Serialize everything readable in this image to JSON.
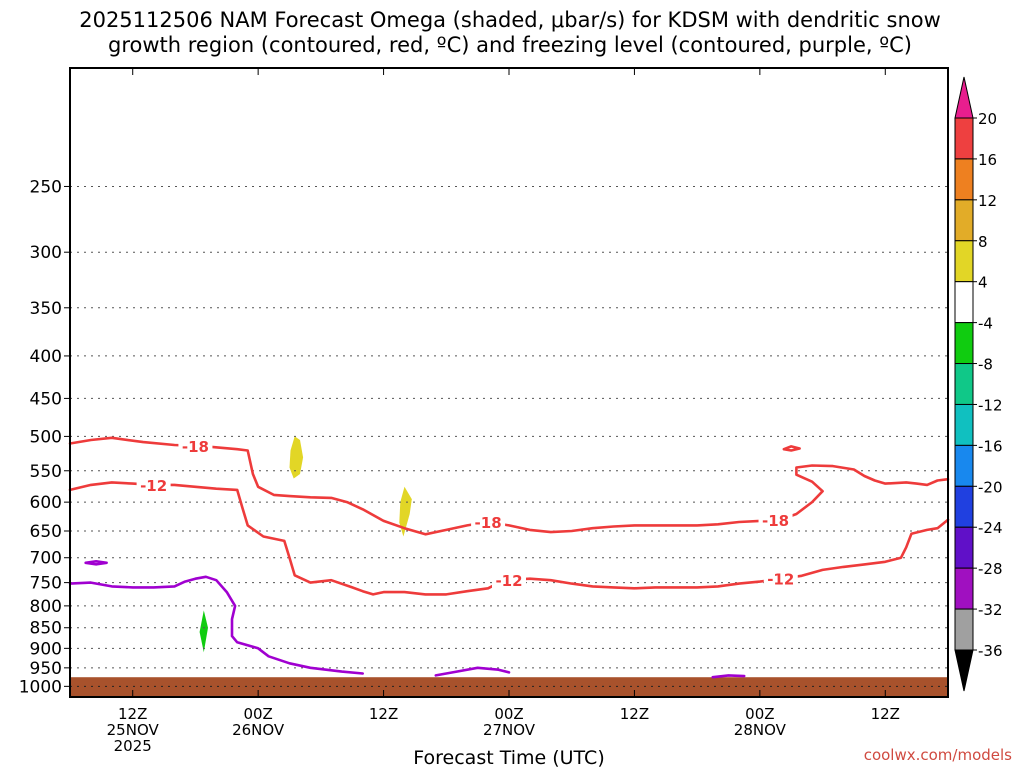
{
  "title_line1": "2025112506 NAM Forecast Omega (shaded, μbar/s) for KDSM with dendritic snow",
  "title_line2": "growth region (contoured, red, ºC) and freezing level (contoured, purple, ºC)",
  "xlabel": "Forecast Time (UTC)",
  "credit": "coolwx.com/models",
  "chart_data": {
    "type": "time-height-contour",
    "title": "2025112506 NAM Forecast Omega (shaded, μbar/s) for KDSM with dendritic snow growth region (contoured, red, ºC) and freezing level (contoured, purple, ºC)",
    "xlabel": "Forecast Time (UTC)",
    "ylabel": "",
    "x_unit": "hours from 2025-11-25 06Z",
    "x_range": [
      0,
      84
    ],
    "y_scale": "log-pressure",
    "y_range_hpa": [
      1030,
      180
    ],
    "pressure_levels": [
      250,
      300,
      350,
      400,
      450,
      500,
      550,
      600,
      650,
      700,
      750,
      800,
      850,
      900,
      950,
      1000
    ],
    "grid": true,
    "x_ticks": [
      {
        "hour": 6,
        "lines": [
          "12Z",
          "25NOV",
          "2025"
        ]
      },
      {
        "hour": 18,
        "lines": [
          "00Z",
          "26NOV"
        ]
      },
      {
        "hour": 30,
        "lines": [
          "12Z"
        ]
      },
      {
        "hour": 42,
        "lines": [
          "00Z",
          "27NOV"
        ]
      },
      {
        "hour": 54,
        "lines": [
          "12Z"
        ]
      },
      {
        "hour": 66,
        "lines": [
          "00Z",
          "28NOV"
        ]
      },
      {
        "hour": 78,
        "lines": [
          "12Z"
        ]
      }
    ],
    "colorbar": {
      "labels": [
        "20",
        "16",
        "12",
        "8",
        "4",
        "-4",
        "-8",
        "-12",
        "-16",
        "-20",
        "-24",
        "-28",
        "-32",
        "-36"
      ],
      "colors": [
        "#e81e8e",
        "#ee4040",
        "#ee8020",
        "#e2ac28",
        "#e2d626",
        "#ffffff",
        "#10cc10",
        "#10c888",
        "#10c0c0",
        "#1888ee",
        "#2040e0",
        "#6010c8",
        "#a010c0",
        "#a0a0a0",
        "#000000"
      ]
    },
    "contours": [
      {
        "name": "-18",
        "color": "#ee3b3b",
        "label_hours": [
          12,
          40,
          67.5
        ],
        "points": [
          [
            0,
            510
          ],
          [
            2,
            505
          ],
          [
            4,
            502
          ],
          [
            7,
            508
          ],
          [
            10,
            512
          ],
          [
            13,
            514
          ],
          [
            16,
            518
          ],
          [
            17,
            520
          ],
          [
            17.5,
            555
          ],
          [
            18,
            575
          ],
          [
            19.5,
            588
          ],
          [
            21,
            590
          ],
          [
            23,
            592
          ],
          [
            25,
            593
          ],
          [
            26.5,
            600
          ],
          [
            28,
            612
          ],
          [
            30,
            632
          ],
          [
            32,
            645
          ],
          [
            34,
            656
          ],
          [
            36,
            648
          ],
          [
            38,
            640
          ],
          [
            40,
            634
          ],
          [
            42,
            640
          ],
          [
            44,
            648
          ],
          [
            46,
            652
          ],
          [
            48,
            650
          ],
          [
            50,
            645
          ],
          [
            52,
            642
          ],
          [
            54,
            640
          ],
          [
            56,
            640
          ],
          [
            58,
            640
          ],
          [
            60,
            640
          ],
          [
            62,
            638
          ],
          [
            64,
            634
          ],
          [
            66,
            632
          ],
          [
            68,
            630
          ],
          [
            69.5,
            620
          ],
          [
            71,
            600
          ],
          [
            72,
            582
          ],
          [
            71,
            567
          ],
          [
            69.5,
            556
          ],
          [
            69.5,
            545
          ],
          [
            71,
            542
          ],
          [
            73,
            543
          ],
          [
            75,
            548
          ],
          [
            76,
            558
          ],
          [
            77,
            565
          ],
          [
            78,
            570
          ],
          [
            80,
            568
          ],
          [
            81,
            570
          ],
          [
            82,
            572
          ],
          [
            83,
            565
          ],
          [
            84,
            563
          ]
        ]
      },
      {
        "name": "-12",
        "color": "#ee3b3b",
        "label_hours": [
          8,
          42,
          68
        ],
        "points": [
          [
            0,
            580
          ],
          [
            2,
            572
          ],
          [
            4,
            568
          ],
          [
            6,
            570
          ],
          [
            8,
            572
          ],
          [
            10,
            572
          ],
          [
            12,
            575
          ],
          [
            14,
            578
          ],
          [
            16,
            580
          ],
          [
            16.5,
            610
          ],
          [
            17,
            640
          ],
          [
            18.5,
            660
          ],
          [
            20.5,
            668
          ],
          [
            21,
            700
          ],
          [
            21.5,
            735
          ],
          [
            23,
            750
          ],
          [
            25,
            745
          ],
          [
            27,
            760
          ],
          [
            28,
            768
          ],
          [
            29,
            775
          ],
          [
            30,
            770
          ],
          [
            32,
            770
          ],
          [
            34,
            775
          ],
          [
            36,
            775
          ],
          [
            38,
            768
          ],
          [
            40,
            762
          ],
          [
            41.5,
            745
          ],
          [
            44,
            742
          ],
          [
            46,
            745
          ],
          [
            48,
            752
          ],
          [
            50,
            758
          ],
          [
            52,
            760
          ],
          [
            54,
            762
          ],
          [
            56,
            760
          ],
          [
            58,
            760
          ],
          [
            60,
            760
          ],
          [
            62,
            758
          ],
          [
            64,
            752
          ],
          [
            66,
            748
          ],
          [
            68,
            742
          ],
          [
            70,
            736
          ],
          [
            72,
            724
          ],
          [
            74,
            718
          ],
          [
            76,
            713
          ],
          [
            78,
            708
          ],
          [
            79.5,
            700
          ],
          [
            80,
            680
          ],
          [
            80.5,
            655
          ],
          [
            82,
            648
          ],
          [
            83,
            645
          ],
          [
            84,
            630
          ]
        ]
      },
      {
        "name": "-18 small loop",
        "color": "#ee3b3b",
        "label_hours": [],
        "points": [
          [
            68.3,
            518
          ],
          [
            69,
            514
          ],
          [
            69.8,
            517
          ],
          [
            69,
            520
          ],
          [
            68.3,
            518
          ]
        ]
      },
      {
        "name": "0 freezing level",
        "color": "#a000d0",
        "label_hours": [],
        "points": [
          [
            0,
            752
          ],
          [
            2,
            750
          ],
          [
            4,
            758
          ],
          [
            6,
            760
          ],
          [
            8,
            760
          ],
          [
            10,
            758
          ],
          [
            11,
            748
          ],
          [
            12,
            742
          ],
          [
            13,
            738
          ],
          [
            14,
            745
          ],
          [
            15,
            770
          ],
          [
            15.8,
            800
          ],
          [
            15.5,
            830
          ],
          [
            15.5,
            870
          ],
          [
            16,
            885
          ],
          [
            18,
            900
          ],
          [
            19,
            920
          ],
          [
            21,
            938
          ],
          [
            23,
            950
          ],
          [
            26,
            960
          ],
          [
            28,
            965
          ]
        ]
      },
      {
        "name": "0 freezing level small loop",
        "color": "#a000d0",
        "label_hours": [],
        "points": [
          [
            1.5,
            710
          ],
          [
            2.5,
            707
          ],
          [
            3.5,
            710
          ],
          [
            2.5,
            713
          ],
          [
            1.5,
            710
          ]
        ]
      },
      {
        "name": "0 freezing level near surface",
        "color": "#a000d0",
        "label_hours": [],
        "points": [
          [
            35,
            970
          ],
          [
            37,
            960
          ],
          [
            39,
            950
          ],
          [
            41,
            955
          ],
          [
            42,
            962
          ]
        ]
      },
      {
        "name": "0 freezing level near surface 2",
        "color": "#a000d0",
        "label_hours": [],
        "points": [
          [
            61.5,
            975
          ],
          [
            63,
            970
          ],
          [
            64.5,
            972
          ]
        ]
      }
    ],
    "shaded_regions": [
      {
        "value_range": "4 to 8",
        "color": "#e2d626",
        "points": [
          [
            21.5,
            500
          ],
          [
            22,
            505
          ],
          [
            22.3,
            530
          ],
          [
            22,
            555
          ],
          [
            21.4,
            562
          ],
          [
            21,
            545
          ],
          [
            21.1,
            520
          ]
        ]
      },
      {
        "value_range": "4 to 8",
        "color": "#e2d626",
        "points": [
          [
            32,
            575
          ],
          [
            32.7,
            595
          ],
          [
            32.5,
            620
          ],
          [
            31.9,
            660
          ],
          [
            31.5,
            635
          ],
          [
            31.6,
            600
          ]
        ]
      },
      {
        "value_range": "-8 to -4",
        "color": "#10cc10",
        "points": [
          [
            12.8,
            810
          ],
          [
            13.2,
            850
          ],
          [
            12.8,
            910
          ],
          [
            12.4,
            860
          ]
        ]
      }
    ],
    "surface": {
      "color": "#a8522c",
      "top_hpa": 975
    }
  }
}
